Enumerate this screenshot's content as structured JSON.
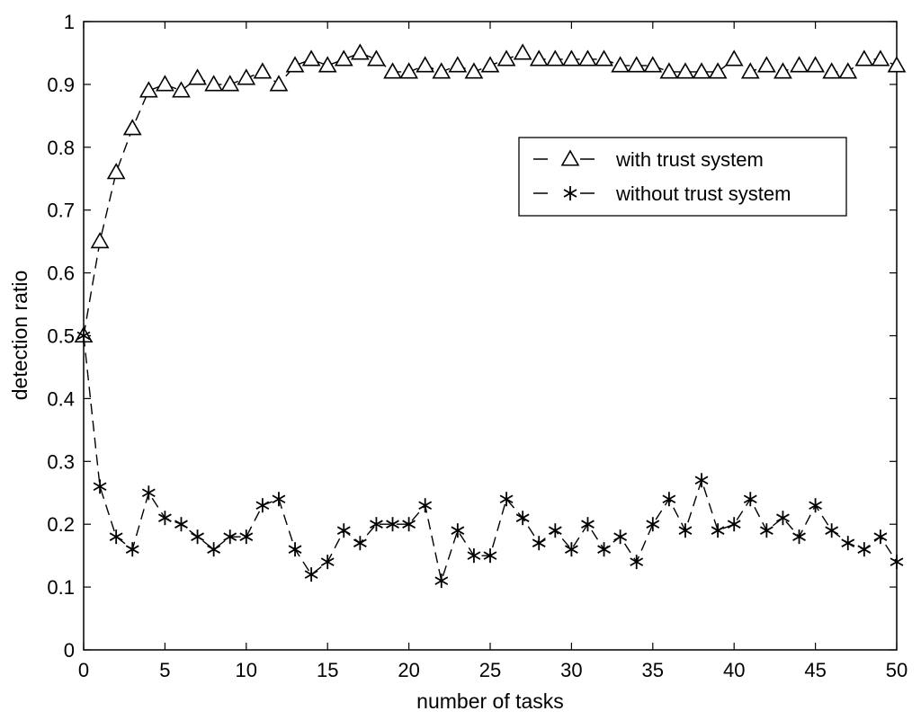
{
  "chart_data": {
    "type": "line",
    "title": "",
    "xlabel": "number of tasks",
    "ylabel": "detection ratio",
    "xlim": [
      0,
      50
    ],
    "ylim": [
      0,
      1
    ],
    "grid": false,
    "legend_position": "top-right",
    "xticks": [
      0,
      5,
      10,
      15,
      20,
      25,
      30,
      35,
      40,
      45,
      50
    ],
    "yticks": [
      0,
      0.1,
      0.2,
      0.3,
      0.4,
      0.5,
      0.6,
      0.7,
      0.8,
      0.9,
      1
    ],
    "x": [
      0,
      1,
      2,
      3,
      4,
      5,
      6,
      7,
      8,
      9,
      10,
      11,
      12,
      13,
      14,
      15,
      16,
      17,
      18,
      19,
      20,
      21,
      22,
      23,
      24,
      25,
      26,
      27,
      28,
      29,
      30,
      31,
      32,
      33,
      34,
      35,
      36,
      37,
      38,
      39,
      40,
      41,
      42,
      43,
      44,
      45,
      46,
      47,
      48,
      49,
      50
    ],
    "series": [
      {
        "name": "with trust system",
        "marker": "triangle",
        "line_style": "dashed",
        "color": "#000000",
        "values": [
          0.5,
          0.65,
          0.76,
          0.83,
          0.89,
          0.9,
          0.89,
          0.91,
          0.9,
          0.9,
          0.91,
          0.92,
          0.9,
          0.93,
          0.94,
          0.93,
          0.94,
          0.95,
          0.94,
          0.92,
          0.92,
          0.93,
          0.92,
          0.93,
          0.92,
          0.93,
          0.94,
          0.95,
          0.94,
          0.94,
          0.94,
          0.94,
          0.94,
          0.93,
          0.93,
          0.93,
          0.92,
          0.92,
          0.92,
          0.92,
          0.94,
          0.92,
          0.93,
          0.92,
          0.93,
          0.93,
          0.92,
          0.92,
          0.94,
          0.94,
          0.93
        ]
      },
      {
        "name": "without trust system",
        "marker": "asterisk",
        "line_style": "dashed",
        "color": "#000000",
        "values": [
          0.5,
          0.26,
          0.18,
          0.16,
          0.25,
          0.21,
          0.2,
          0.18,
          0.16,
          0.18,
          0.18,
          0.23,
          0.24,
          0.16,
          0.12,
          0.14,
          0.19,
          0.17,
          0.2,
          0.2,
          0.2,
          0.23,
          0.11,
          0.19,
          0.15,
          0.15,
          0.24,
          0.21,
          0.17,
          0.19,
          0.16,
          0.2,
          0.16,
          0.18,
          0.14,
          0.2,
          0.24,
          0.19,
          0.27,
          0.19,
          0.2,
          0.24,
          0.19,
          0.21,
          0.18,
          0.23,
          0.19,
          0.17,
          0.16,
          0.18,
          0.14
        ]
      }
    ]
  }
}
